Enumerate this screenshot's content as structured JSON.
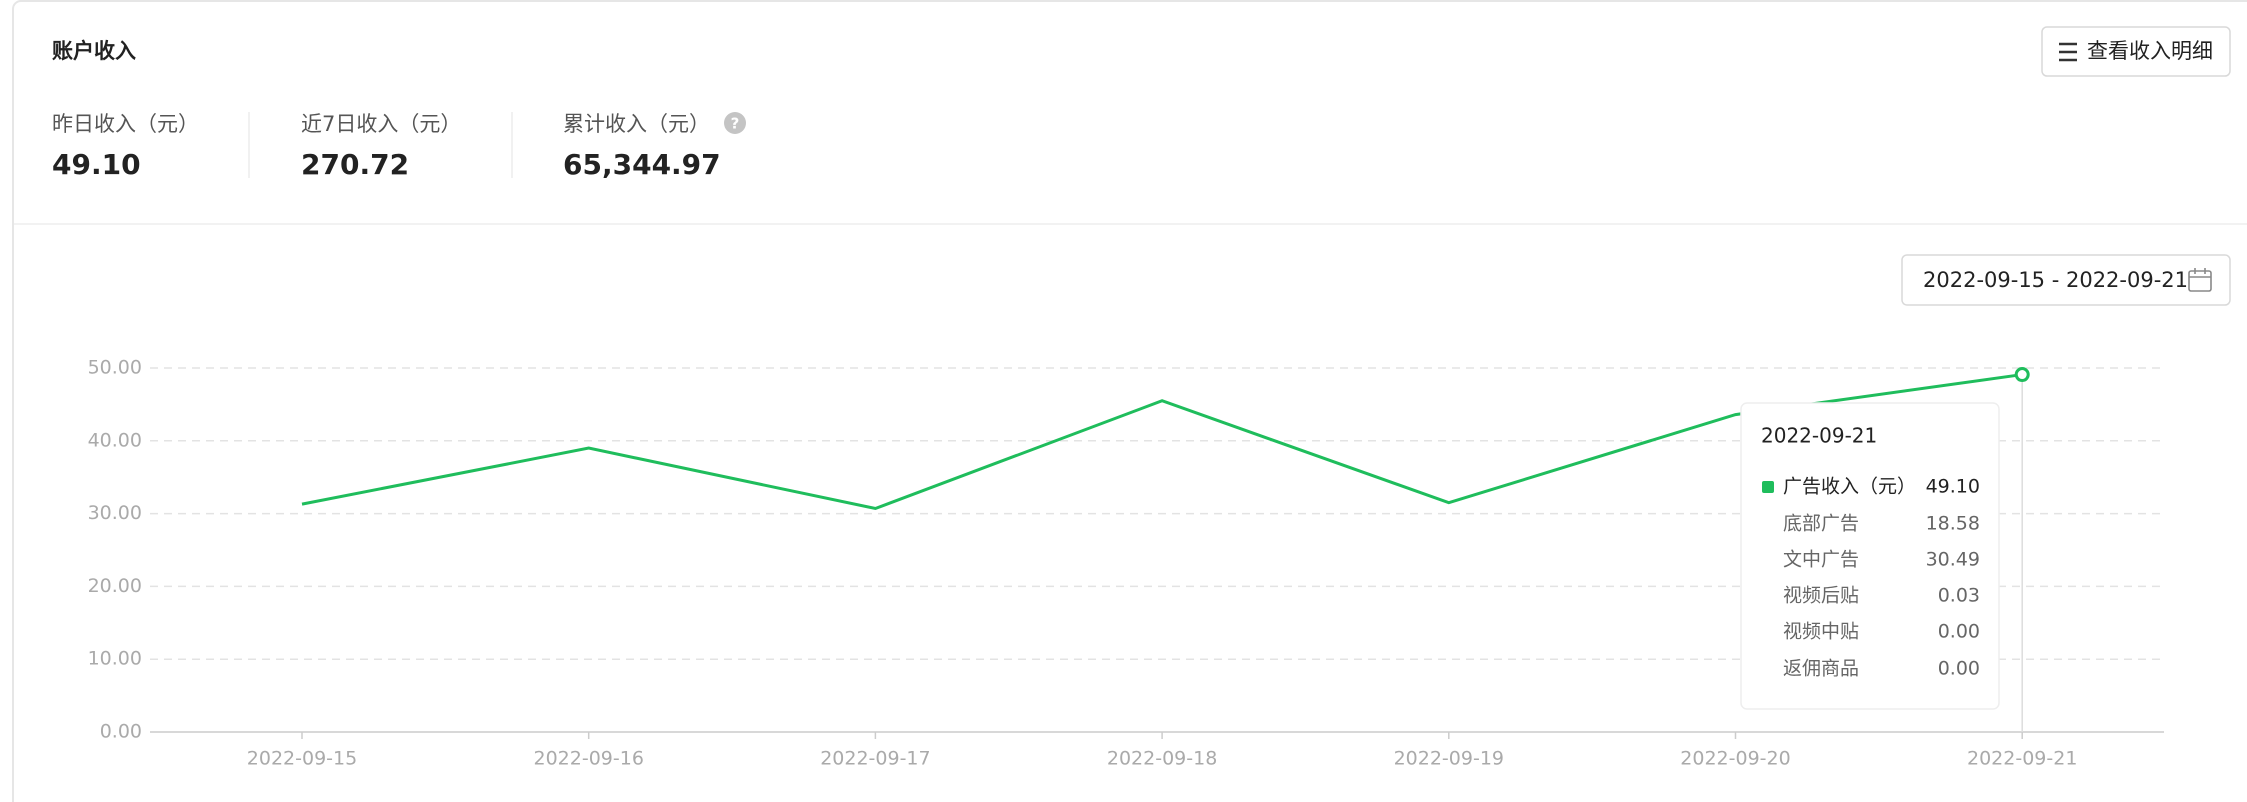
{
  "header": {
    "title": "账户收入",
    "button": "查看收入明细"
  },
  "stats": [
    {
      "label": "昨日收入（元）",
      "value": "49.10"
    },
    {
      "label": "近7日收入（元）",
      "value": "270.72"
    },
    {
      "label": "累计收入（元）",
      "value": "65,344.97"
    }
  ],
  "date_range": "2022-09-15 - 2022-09-21",
  "chart_data": {
    "type": "line",
    "categories": [
      "2022-09-15",
      "2022-09-16",
      "2022-09-17",
      "2022-09-18",
      "2022-09-19",
      "2022-09-20",
      "2022-09-21"
    ],
    "series": [
      {
        "color": "#1fbd5c",
        "values": [
          31.3,
          39.0,
          30.7,
          45.5,
          31.5,
          43.6,
          49.1
        ]
      }
    ],
    "ylim": [
      0,
      50
    ],
    "yticks": [
      {
        "value": 0,
        "label": "0.00"
      },
      {
        "value": 10,
        "label": "10.00"
      },
      {
        "value": 20,
        "label": "20.00"
      },
      {
        "value": 30,
        "label": "30.00"
      },
      {
        "value": 40,
        "label": "40.00"
      },
      {
        "value": 50,
        "label": "50.00"
      }
    ],
    "grid": true
  },
  "tooltip": {
    "date": "2022-09-21",
    "rows": [
      {
        "label": "广告收入（元）",
        "value": "49.10"
      },
      {
        "label": "底部广告",
        "value": "18.58"
      },
      {
        "label": "文中广告",
        "value": "30.49"
      },
      {
        "label": "视频后贴",
        "value": "0.03"
      },
      {
        "label": "视频中贴",
        "value": "0.00"
      },
      {
        "label": "返佣商品",
        "value": "0.00"
      }
    ]
  }
}
